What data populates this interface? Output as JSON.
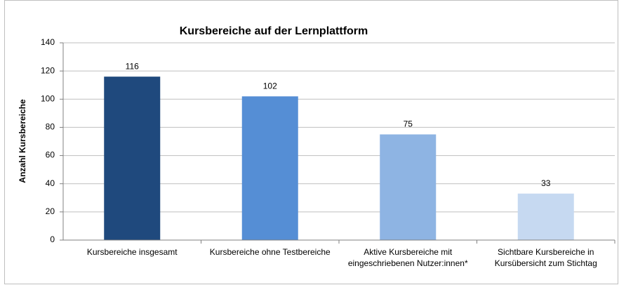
{
  "chart_data": {
    "type": "bar",
    "title": "Kursbereiche auf der Lernplattform",
    "y_label": "Anzahl Kursbereiche",
    "categories": [
      "Kursbereiche insgesamt",
      "Kursbereiche ohne Testbereiche",
      "Aktive Kursbereiche mit eingeschriebenen Nutzer:innen*",
      "Sichtbare Kursbereiche in Kursübersicht zum Stichtag"
    ],
    "values": [
      116,
      102,
      75,
      33
    ],
    "colors": [
      "#1f497d",
      "#558ed5",
      "#8eb4e3",
      "#c6d9f1"
    ],
    "ylim": [
      0,
      140
    ],
    "yticks": [
      0,
      20,
      40,
      60,
      80,
      100,
      120,
      140
    ],
    "grid": true
  }
}
